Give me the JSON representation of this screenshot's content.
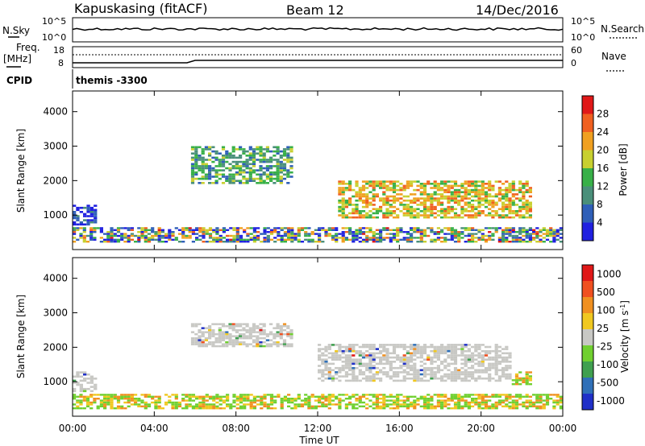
{
  "header": {
    "radar": "Kapuskasing (fitACF)",
    "beam": "Beam 12",
    "date": "14/Dec/2016"
  },
  "noise_panel": {
    "left_label": "N.Sky",
    "right_label": "N.Search",
    "left_ticks": [
      "10^5",
      "10^0"
    ],
    "right_ticks": [
      "10^5",
      "10^0"
    ]
  },
  "freq_panel": {
    "left_label_1": "Freq.",
    "left_label_2": "[MHz]",
    "right_label": "Nave",
    "left_ticks": [
      "18",
      "8"
    ],
    "right_ticks": [
      "60",
      "0"
    ]
  },
  "cpid": {
    "label": "CPID",
    "value": "themis -3300"
  },
  "time_axis": {
    "label": "Time UT",
    "ticks": [
      "00:00",
      "04:00",
      "08:00",
      "12:00",
      "16:00",
      "20:00",
      "00:00"
    ]
  },
  "chart_data": [
    {
      "type": "heatmap",
      "title": "",
      "xlabel": "Time UT",
      "ylabel": "Slant Range [km]",
      "y_ticks": [
        1000,
        2000,
        3000,
        4000
      ],
      "colorbar": {
        "label": "Power [dB]",
        "ticks": [
          4,
          8,
          12,
          16,
          20,
          24,
          28
        ],
        "colors": [
          "#2020e0",
          "#2f5fb8",
          "#4a8f7a",
          "#38b048",
          "#c8d030",
          "#f0a020",
          "#f06020",
          "#e01818"
        ]
      },
      "regions": [
        {
          "t": [
            0.0,
            1.2
          ],
          "r": [
            700,
            1300
          ],
          "level": "low"
        },
        {
          "t": [
            0.0,
            24.0
          ],
          "r": [
            200,
            650
          ],
          "level": "mixed"
        },
        {
          "t": [
            5.8,
            10.8
          ],
          "r": [
            1900,
            3000
          ],
          "level": "medium"
        },
        {
          "t": [
            13.0,
            22.5
          ],
          "r": [
            900,
            2000
          ],
          "level": "high"
        }
      ]
    },
    {
      "type": "heatmap",
      "title": "",
      "xlabel": "Time UT",
      "ylabel": "Slant Range [km]",
      "y_ticks": [
        1000,
        2000,
        3000,
        4000
      ],
      "colorbar": {
        "label": "Velocity [m s^-1]",
        "ticks": [
          "1000",
          "500",
          "100",
          "25",
          "-25",
          "-100",
          "-500",
          "-1000"
        ],
        "colors": [
          "#2030c8",
          "#3070b8",
          "#40a050",
          "#70d030",
          "#c8c8c4",
          "#f0c820",
          "#f09020",
          "#f05020",
          "#e01818"
        ]
      },
      "regions": [
        {
          "t": [
            0.0,
            1.2
          ],
          "r": [
            700,
            1300
          ],
          "level": "ground"
        },
        {
          "t": [
            0.0,
            24.0
          ],
          "r": [
            200,
            650
          ],
          "level": "mixed"
        },
        {
          "t": [
            5.8,
            10.8
          ],
          "r": [
            2000,
            2700
          ],
          "level": "ground"
        },
        {
          "t": [
            12.0,
            21.5
          ],
          "r": [
            1000,
            2100
          ],
          "level": "ground"
        },
        {
          "t": [
            21.5,
            22.5
          ],
          "r": [
            900,
            1300
          ],
          "level": "mixed"
        }
      ]
    }
  ]
}
